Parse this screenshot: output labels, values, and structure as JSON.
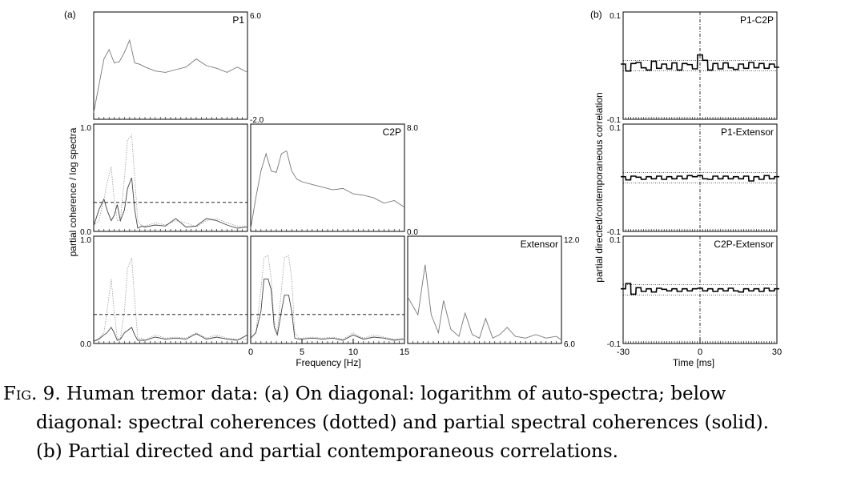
{
  "figure": {
    "panel_a_label": "(a)",
    "panel_b_label": "(b)",
    "ylabel_a": "partial coherence / log spectra",
    "xlabel_a": "Frequency [Hz]",
    "ylabel_b": "partial directed/contemporaneous correlation",
    "xlabel_b": "Time [ms]"
  },
  "caption": {
    "fig_label": "Fig. 9.",
    "line1": "Human tremor data: (a) On diagonal: logarithm of auto-spectra; below",
    "line2": "diagonal: spectral coherences (dotted) and partial spectral coherences (solid).",
    "line3": "(b) Partial directed and partial contemporaneous correlations."
  },
  "chart_data": [
    {
      "type": "line",
      "panel": "a",
      "title": "P1",
      "x": [
        0,
        0.5,
        1,
        1.5,
        2,
        2.5,
        3,
        3.5,
        4,
        4.5,
        5,
        6,
        7,
        8,
        9,
        10,
        11,
        12,
        13,
        14,
        15
      ],
      "series": [
        {
          "values": [
            -1.5,
            0.5,
            2.5,
            3.2,
            2.2,
            2.3,
            3.0,
            3.9,
            2.2,
            2.1,
            1.9,
            1.6,
            1.5,
            1.7,
            1.9,
            2.5,
            2.0,
            1.8,
            1.5,
            1.9,
            1.5
          ]
        }
      ],
      "xlim": [
        0,
        15
      ],
      "ylim": [
        -2.0,
        6.0
      ],
      "ytick_labels_right": [
        "6.0",
        "-2.0"
      ]
    },
    {
      "type": "line",
      "panel": "a",
      "title": "C2P",
      "x": [
        0,
        0.5,
        1,
        1.5,
        2,
        2.5,
        3,
        3.5,
        4,
        4.5,
        5,
        6,
        7,
        8,
        9,
        10,
        11,
        12,
        13,
        14,
        15
      ],
      "series": [
        {
          "values": [
            0.2,
            2.5,
            4.5,
            5.8,
            4.5,
            4.4,
            5.8,
            6.0,
            4.5,
            3.9,
            3.7,
            3.5,
            3.3,
            3.1,
            3.2,
            2.8,
            2.7,
            2.5,
            2.1,
            2.3,
            1.8
          ]
        }
      ],
      "xlim": [
        0,
        15
      ],
      "ylim": [
        0.0,
        8.0
      ],
      "ytick_labels_right": [
        "8.0",
        "0.0"
      ]
    },
    {
      "type": "line",
      "panel": "a",
      "title": "Extensor",
      "x": [
        0,
        1,
        1.7,
        2.3,
        3,
        3.5,
        4.2,
        5,
        5.6,
        6.3,
        7,
        7.6,
        8.3,
        9,
        9.7,
        10.5,
        11.5,
        12.5,
        13.5,
        14.5,
        15
      ],
      "series": [
        {
          "values": [
            8.6,
            7.6,
            10.4,
            7.6,
            6.6,
            8.4,
            6.8,
            6.4,
            7.7,
            6.5,
            6.3,
            7.4,
            6.3,
            6.5,
            6.9,
            6.4,
            6.3,
            6.5,
            6.3,
            6.4,
            6.2
          ]
        }
      ],
      "xlim": [
        0,
        15
      ],
      "ylim": [
        6.0,
        12.0
      ],
      "ytick_labels_right": [
        "12.0",
        "6.0"
      ]
    },
    {
      "type": "line",
      "panel": "a",
      "title": "",
      "x": [
        0,
        0.5,
        1,
        1.3,
        1.7,
        2,
        2.3,
        2.6,
        3,
        3.3,
        3.7,
        4,
        4.3,
        4.7,
        5,
        6,
        7,
        8,
        9,
        10,
        11,
        12,
        13,
        14,
        15
      ],
      "series": [
        {
          "name": "spectral coherence",
          "values": [
            0.05,
            0.1,
            0.3,
            0.45,
            0.6,
            0.3,
            0.1,
            0.1,
            0.5,
            0.85,
            0.9,
            0.5,
            0.1,
            0.05,
            0.05,
            0.08,
            0.06,
            0.1,
            0.08,
            0.04,
            0.1,
            0.12,
            0.08,
            0.05,
            0.05
          ]
        },
        {
          "name": "partial spectral coherence",
          "values": [
            0.05,
            0.2,
            0.3,
            0.2,
            0.1,
            0.15,
            0.25,
            0.1,
            0.2,
            0.4,
            0.5,
            0.2,
            0.03,
            0.05,
            0.04,
            0.06,
            0.05,
            0.12,
            0.04,
            0.05,
            0.12,
            0.1,
            0.06,
            0.03,
            0.04
          ]
        },
        {
          "name": "threshold",
          "values": [
            0.27,
            0.27,
            0.27,
            0.27,
            0.27,
            0.27,
            0.27,
            0.27,
            0.27,
            0.27,
            0.27,
            0.27,
            0.27,
            0.27,
            0.27,
            0.27,
            0.27,
            0.27,
            0.27,
            0.27,
            0.27,
            0.27,
            0.27,
            0.27,
            0.27
          ]
        }
      ],
      "xlim": [
        0,
        15
      ],
      "ylim": [
        0.0,
        1.0
      ],
      "ytick_labels_left": [
        "1.0",
        "0.0"
      ]
    },
    {
      "type": "line",
      "panel": "a",
      "title": "",
      "x": [
        0,
        0.5,
        1,
        1.3,
        1.7,
        2,
        2.3,
        2.6,
        3,
        3.3,
        3.7,
        4,
        4.3,
        4.7,
        5,
        6,
        7,
        8,
        9,
        10,
        11,
        12,
        13,
        14,
        15
      ],
      "series": [
        {
          "name": "spectral coherence",
          "values": [
            0.02,
            0.05,
            0.1,
            0.3,
            0.6,
            0.3,
            0.05,
            0.05,
            0.3,
            0.7,
            0.8,
            0.4,
            0.05,
            0.05,
            0.03,
            0.08,
            0.05,
            0.06,
            0.05,
            0.1,
            0.05,
            0.08,
            0.05,
            0.04,
            0.04
          ]
        },
        {
          "name": "partial spectral coherence",
          "values": [
            0.02,
            0.04,
            0.08,
            0.1,
            0.15,
            0.1,
            0.03,
            0.04,
            0.1,
            0.12,
            0.15,
            0.08,
            0.03,
            0.03,
            0.03,
            0.06,
            0.04,
            0.05,
            0.04,
            0.09,
            0.04,
            0.06,
            0.04,
            0.03,
            0.08
          ]
        },
        {
          "name": "threshold",
          "values": [
            0.27,
            0.27,
            0.27,
            0.27,
            0.27,
            0.27,
            0.27,
            0.27,
            0.27,
            0.27,
            0.27,
            0.27,
            0.27,
            0.27,
            0.27,
            0.27,
            0.27,
            0.27,
            0.27,
            0.27,
            0.27,
            0.27,
            0.27,
            0.27,
            0.27
          ]
        }
      ],
      "xlim": [
        0,
        15
      ],
      "ylim": [
        0.0,
        1.0
      ],
      "ytick_labels_left": [
        "1.0",
        "0.0"
      ]
    },
    {
      "type": "line",
      "panel": "a",
      "title": "",
      "x": [
        0,
        0.5,
        1,
        1.3,
        1.7,
        2,
        2.3,
        2.6,
        3,
        3.3,
        3.7,
        4,
        4.3,
        4.7,
        5,
        6,
        7,
        8,
        9,
        10,
        11,
        12,
        13,
        14,
        15
      ],
      "series": [
        {
          "name": "spectral coherence",
          "values": [
            0.05,
            0.1,
            0.5,
            0.8,
            0.82,
            0.6,
            0.2,
            0.1,
            0.5,
            0.8,
            0.82,
            0.6,
            0.1,
            0.05,
            0.05,
            0.06,
            0.05,
            0.06,
            0.04,
            0.1,
            0.05,
            0.08,
            0.06,
            0.04,
            0.05
          ]
        },
        {
          "name": "partial spectral coherence",
          "values": [
            0.05,
            0.1,
            0.3,
            0.6,
            0.6,
            0.5,
            0.15,
            0.08,
            0.3,
            0.45,
            0.45,
            0.3,
            0.05,
            0.04,
            0.04,
            0.05,
            0.04,
            0.05,
            0.03,
            0.08,
            0.04,
            0.06,
            0.05,
            0.03,
            0.04
          ]
        },
        {
          "name": "threshold",
          "values": [
            0.27,
            0.27,
            0.27,
            0.27,
            0.27,
            0.27,
            0.27,
            0.27,
            0.27,
            0.27,
            0.27,
            0.27,
            0.27,
            0.27,
            0.27,
            0.27,
            0.27,
            0.27,
            0.27,
            0.27,
            0.27,
            0.27,
            0.27,
            0.27,
            0.27
          ]
        }
      ],
      "xlim": [
        0,
        15
      ],
      "ylim": [
        0.0,
        1.0
      ],
      "xticks": [
        "0",
        "5",
        "10",
        "15"
      ]
    },
    {
      "type": "line",
      "panel": "b",
      "title": "P1-C2P",
      "x": [
        -30,
        -28,
        -26,
        -24,
        -22,
        -20,
        -18,
        -16,
        -14,
        -12,
        -10,
        -8,
        -6,
        -4,
        -2,
        0,
        2,
        4,
        6,
        8,
        10,
        12,
        14,
        16,
        18,
        20,
        22,
        24,
        26,
        28,
        30
      ],
      "series": [
        {
          "values": [
            0.003,
            -0.01,
            0.004,
            0.006,
            -0.004,
            -0.008,
            0.008,
            -0.005,
            0.003,
            -0.006,
            0.005,
            -0.008,
            0.004,
            0.002,
            -0.006,
            0.02,
            0.01,
            -0.008,
            0.004,
            -0.006,
            0.005,
            -0.004,
            -0.007,
            0.003,
            -0.005,
            0.006,
            -0.004,
            0.004,
            -0.005,
            0.003,
            -0.003
          ]
        }
      ],
      "bands": [
        0.01,
        -0.01
      ],
      "xlim": [
        -30,
        30
      ],
      "ylim": [
        -0.1,
        0.1
      ],
      "ytick_labels_left": [
        "0.1",
        "-0.1"
      ]
    },
    {
      "type": "line",
      "panel": "b",
      "title": "P1-Extensor",
      "x": [
        -30,
        -28,
        -26,
        -24,
        -22,
        -20,
        -18,
        -16,
        -14,
        -12,
        -10,
        -8,
        -6,
        -4,
        -2,
        0,
        2,
        4,
        6,
        8,
        10,
        12,
        14,
        16,
        18,
        20,
        22,
        24,
        26,
        28,
        30
      ],
      "series": [
        {
          "values": [
            0.002,
            -0.004,
            0.003,
            0.001,
            -0.003,
            0.002,
            -0.002,
            0.003,
            -0.003,
            0.002,
            -0.002,
            0.003,
            -0.002,
            0.004,
            0.002,
            0.004,
            -0.002,
            -0.003,
            0.003,
            -0.002,
            0.003,
            -0.002,
            0.002,
            -0.002,
            0.003,
            -0.006,
            0.002,
            -0.003,
            0.004,
            -0.002,
            0.002
          ]
        }
      ],
      "bands": [
        0.01,
        -0.01
      ],
      "xlim": [
        -30,
        30
      ],
      "ylim": [
        -0.1,
        0.1
      ],
      "ytick_labels_left": [
        "0.1",
        "-0.1"
      ]
    },
    {
      "type": "line",
      "panel": "b",
      "title": "C2P-Extensor",
      "x": [
        -30,
        -28,
        -26,
        -24,
        -22,
        -20,
        -18,
        -16,
        -14,
        -12,
        -10,
        -8,
        -6,
        -4,
        -2,
        0,
        2,
        4,
        6,
        8,
        10,
        12,
        14,
        16,
        18,
        20,
        22,
        24,
        26,
        28,
        30
      ],
      "series": [
        {
          "values": [
            0.002,
            0.012,
            -0.008,
            0.004,
            -0.003,
            0.002,
            -0.004,
            0.003,
            0.001,
            -0.002,
            0.002,
            -0.003,
            0.002,
            -0.002,
            0.002,
            0.003,
            -0.002,
            0.002,
            -0.003,
            0.002,
            -0.002,
            0.003,
            -0.002,
            -0.004,
            0.002,
            -0.002,
            0.002,
            -0.003,
            0.003,
            -0.002,
            0.002
          ]
        }
      ],
      "bands": [
        0.01,
        -0.01
      ],
      "xlim": [
        -30,
        30
      ],
      "ylim": [
        -0.1,
        0.1
      ],
      "ytick_labels_left": [
        "0.1",
        "-0.1"
      ],
      "xticks": [
        "-30",
        "0",
        "30"
      ]
    }
  ]
}
